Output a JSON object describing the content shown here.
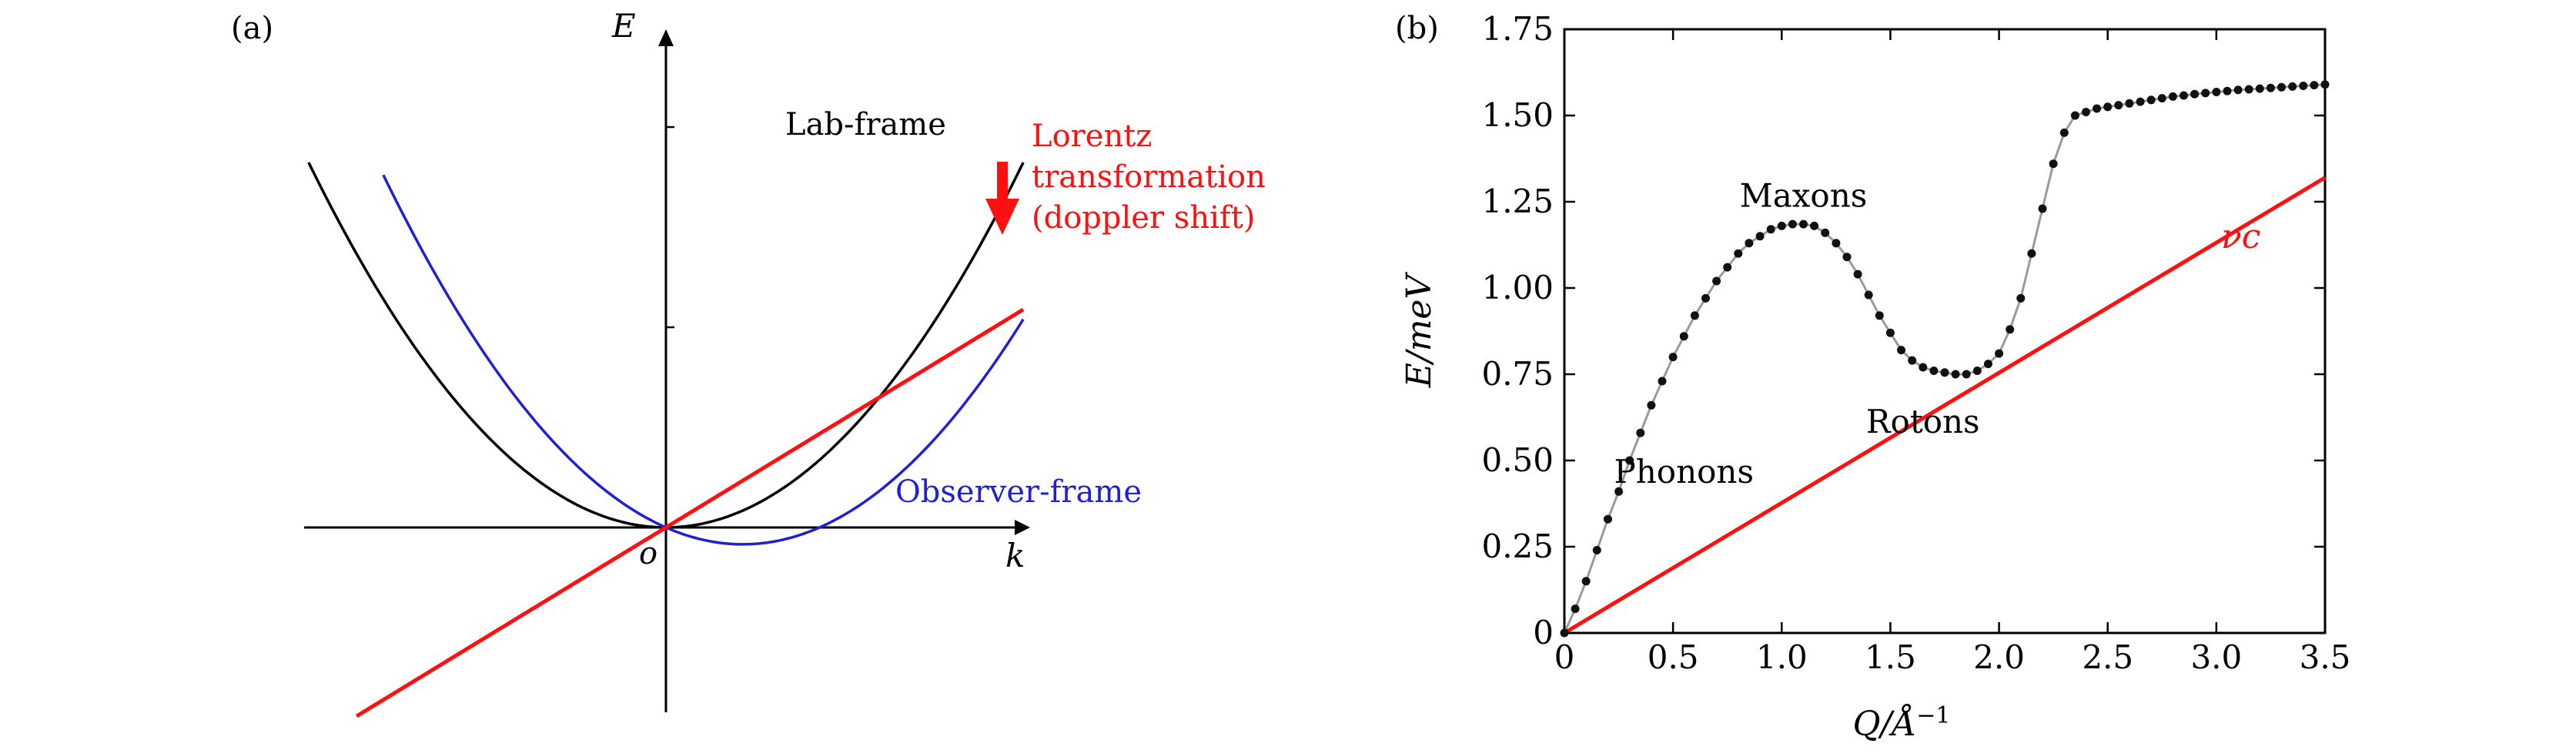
{
  "chart_data": [
    {
      "type": "line",
      "panel_label": "(a)",
      "title": "",
      "xlabel": "k",
      "ylabel": "E",
      "origin_label": "o",
      "series": [
        {
          "name": "Lab-frame",
          "color": "#000000",
          "form": "parabola",
          "coeff": 0.3,
          "x_range": [
            -3.35,
            3.35
          ]
        },
        {
          "name": "Observer-frame",
          "color": "#1f1fd6",
          "form": "parabola",
          "coeff": 0.3,
          "shift": 0.72,
          "x_range": [
            -2.65,
            3.35
          ]
        },
        {
          "name": "",
          "color": "#ff1010",
          "form": "line",
          "slope": 0.6,
          "x_range": [
            -2.9,
            3.35
          ]
        }
      ],
      "annotation": {
        "lines": [
          "Lorentz",
          "transformation",
          "(doppler shift)"
        ],
        "color": "#ff1010",
        "arrow_color": "#ff1010"
      },
      "xlim": [
        -3.4,
        3.4
      ],
      "ylim": [
        -1.7,
        4.6
      ],
      "y_ticks_unlabeled": 3,
      "grid": false
    },
    {
      "type": "line",
      "panel_label": "(b)",
      "title": "",
      "xlabel": "Q/Å",
      "xlabel_exponent": "−1",
      "ylabel": "E/meV",
      "xlim": [
        0,
        3.5
      ],
      "ylim": [
        0,
        1.75
      ],
      "x_ticks": [
        "0",
        "0.5",
        "1.0",
        "1.5",
        "2.0",
        "2.5",
        "3.0",
        "3.5"
      ],
      "y_ticks": [
        "0",
        "0.25",
        "0.50",
        "0.75",
        "1.00",
        "1.25",
        "1.50",
        "1.75"
      ],
      "grid": false,
      "series": [
        {
          "name": "",
          "color": "#000000",
          "line_color": "#9a9a9a",
          "marker": "dot",
          "x": [
            0.0,
            0.05,
            0.1,
            0.15,
            0.2,
            0.25,
            0.3,
            0.35,
            0.4,
            0.45,
            0.5,
            0.55,
            0.6,
            0.65,
            0.7,
            0.75,
            0.8,
            0.85,
            0.9,
            0.95,
            1.0,
            1.05,
            1.1,
            1.15,
            1.2,
            1.25,
            1.3,
            1.35,
            1.4,
            1.45,
            1.5,
            1.55,
            1.6,
            1.65,
            1.7,
            1.75,
            1.8,
            1.85,
            1.9,
            1.95,
            2.0,
            2.05,
            2.1,
            2.15,
            2.2,
            2.25,
            2.3,
            2.35,
            2.4,
            2.45,
            2.5,
            2.55,
            2.6,
            2.65,
            2.7,
            2.75,
            2.8,
            2.85,
            2.9,
            2.95,
            3.0,
            3.05,
            3.1,
            3.15,
            3.2,
            3.25,
            3.3,
            3.35,
            3.4,
            3.45,
            3.5
          ],
          "y": [
            0.0,
            0.07,
            0.15,
            0.24,
            0.33,
            0.41,
            0.5,
            0.58,
            0.66,
            0.73,
            0.8,
            0.86,
            0.92,
            0.97,
            1.02,
            1.06,
            1.1,
            1.13,
            1.15,
            1.17,
            1.18,
            1.185,
            1.185,
            1.18,
            1.16,
            1.13,
            1.09,
            1.04,
            0.98,
            0.92,
            0.87,
            0.82,
            0.79,
            0.77,
            0.76,
            0.755,
            0.75,
            0.75,
            0.76,
            0.78,
            0.81,
            0.88,
            0.97,
            1.1,
            1.23,
            1.36,
            1.45,
            1.5,
            1.51,
            1.52,
            1.525,
            1.53,
            1.535,
            1.54,
            1.545,
            1.55,
            1.555,
            1.558,
            1.562,
            1.565,
            1.568,
            1.571,
            1.574,
            1.576,
            1.578,
            1.58,
            1.582,
            1.584,
            1.586,
            1.588,
            1.59
          ]
        },
        {
          "name": "νc",
          "color": "#ff1010",
          "x": [
            0,
            3.5
          ],
          "y": [
            0,
            1.32
          ]
        }
      ],
      "annotations": [
        {
          "text": "Maxons",
          "x": 1.1,
          "y": 1.235
        },
        {
          "text": "Rotons",
          "x": 1.65,
          "y": 0.58
        },
        {
          "text": "Phonons",
          "x": 0.55,
          "y": 0.435
        }
      ]
    }
  ]
}
